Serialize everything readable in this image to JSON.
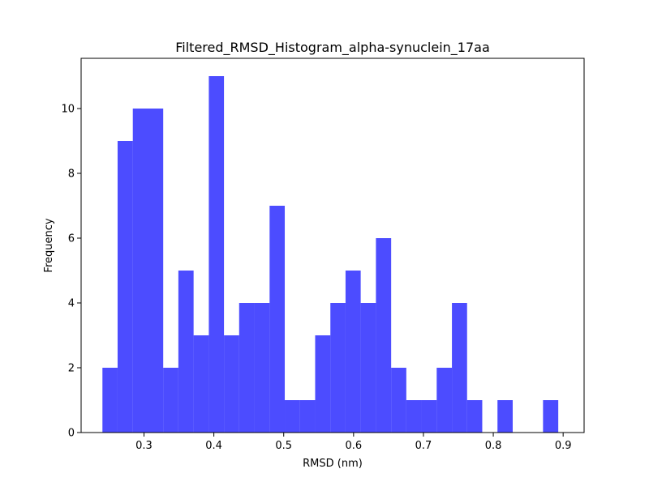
{
  "chart_data": {
    "type": "bar",
    "title": "Filtered_RMSD_Histogram_alpha-synuclein_17aa",
    "xlabel": "RMSD (nm)",
    "ylabel": "Frequency",
    "xlim": [
      0.21,
      0.93
    ],
    "ylim": [
      0,
      11.55
    ],
    "xticks": [
      "0.3",
      "0.4",
      "0.5",
      "0.6",
      "0.7",
      "0.8",
      "0.9"
    ],
    "yticks": [
      "0",
      "2",
      "4",
      "6",
      "8",
      "10"
    ],
    "grid": false,
    "bar_color": "#0000ff",
    "bin_edges": [
      0.2405,
      0.2622,
      0.284,
      0.3058,
      0.3275,
      0.3492,
      0.371,
      0.3928,
      0.4145,
      0.4362,
      0.458,
      0.4798,
      0.5015,
      0.5232,
      0.545,
      0.5668,
      0.5885,
      0.6102,
      0.632,
      0.6538,
      0.6755,
      0.6972,
      0.719,
      0.7408,
      0.7625,
      0.7842,
      0.806,
      0.8278,
      0.8495,
      0.8712,
      0.893
    ],
    "counts": [
      2,
      9,
      10,
      10,
      2,
      5,
      3,
      11,
      3,
      4,
      4,
      7,
      1,
      1,
      3,
      4,
      5,
      4,
      6,
      2,
      1,
      1,
      2,
      4,
      1,
      0,
      1,
      0,
      0,
      1
    ]
  }
}
